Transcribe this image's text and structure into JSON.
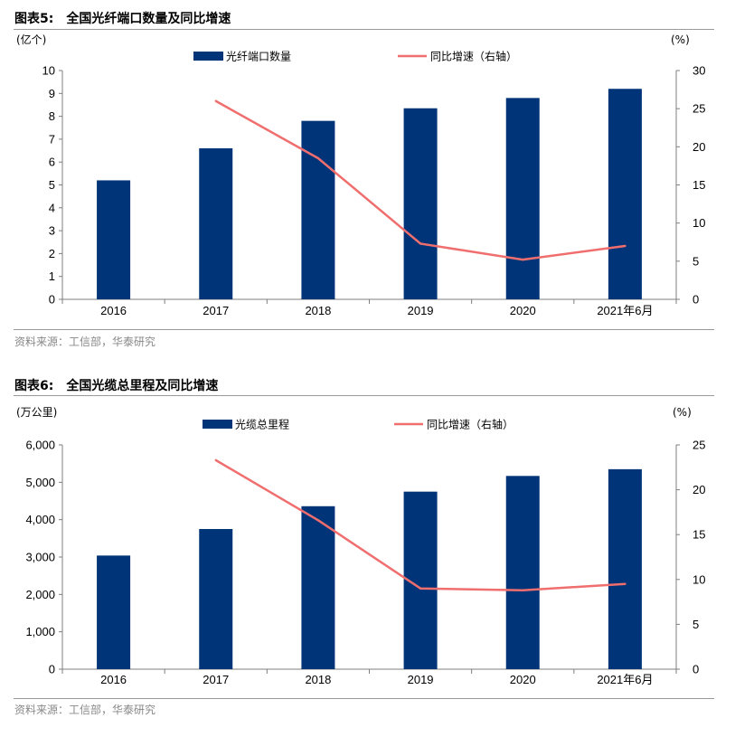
{
  "figures": [
    {
      "number": "图表5:",
      "title": "全国光纤端口数量及同比增速",
      "source": "资料来源：工信部，华泰研究"
    },
    {
      "number": "图表6:",
      "title": "全国光缆总里程及同比增速",
      "source": "资料来源：工信部，华泰研究"
    }
  ],
  "colors": {
    "bar": "#003478",
    "line": "#f06e6e",
    "axis": "#7f7f7f"
  },
  "chart_data": [
    {
      "type": "bar",
      "categories": [
        "2016",
        "2017",
        "2018",
        "2019",
        "2020",
        "2021年6月"
      ],
      "series": [
        {
          "name": "光纤端口数量",
          "type": "bar",
          "axis": "left",
          "values": [
            5.2,
            6.6,
            7.8,
            8.35,
            8.8,
            9.2
          ]
        },
        {
          "name": "同比增速（右轴）",
          "type": "line",
          "axis": "right",
          "values": [
            null,
            26.0,
            18.5,
            7.3,
            5.2,
            7.0
          ]
        }
      ],
      "ylabel_left": "(亿个)",
      "ylabel_right": "(%)",
      "ylim_left": [
        0,
        10
      ],
      "ylim_right": [
        0,
        30
      ],
      "yticks_left": [
        "0",
        "1",
        "2",
        "3",
        "4",
        "5",
        "6",
        "7",
        "8",
        "9",
        "10"
      ],
      "yticks_right": [
        "0",
        "5",
        "10",
        "15",
        "20",
        "25",
        "30"
      ],
      "grid": false,
      "legend": "top"
    },
    {
      "type": "bar",
      "categories": [
        "2016",
        "2017",
        "2018",
        "2019",
        "2020",
        "2021年6月"
      ],
      "series": [
        {
          "name": "光缆总里程",
          "type": "bar",
          "axis": "left",
          "values": [
            3040,
            3750,
            4360,
            4750,
            5170,
            5350
          ]
        },
        {
          "name": "同比增速（右轴）",
          "type": "line",
          "axis": "right",
          "values": [
            null,
            23.3,
            16.6,
            9.0,
            8.8,
            9.5
          ]
        }
      ],
      "ylabel_left": "(万公里)",
      "ylabel_right": "(%)",
      "ylim_left": [
        0,
        6000
      ],
      "ylim_right": [
        0,
        25
      ],
      "yticks_left": [
        "0",
        "1,000",
        "2,000",
        "3,000",
        "4,000",
        "5,000",
        "6,000"
      ],
      "yticks_right": [
        "0",
        "5",
        "10",
        "15",
        "20",
        "25"
      ],
      "grid": false,
      "legend": "top"
    }
  ]
}
